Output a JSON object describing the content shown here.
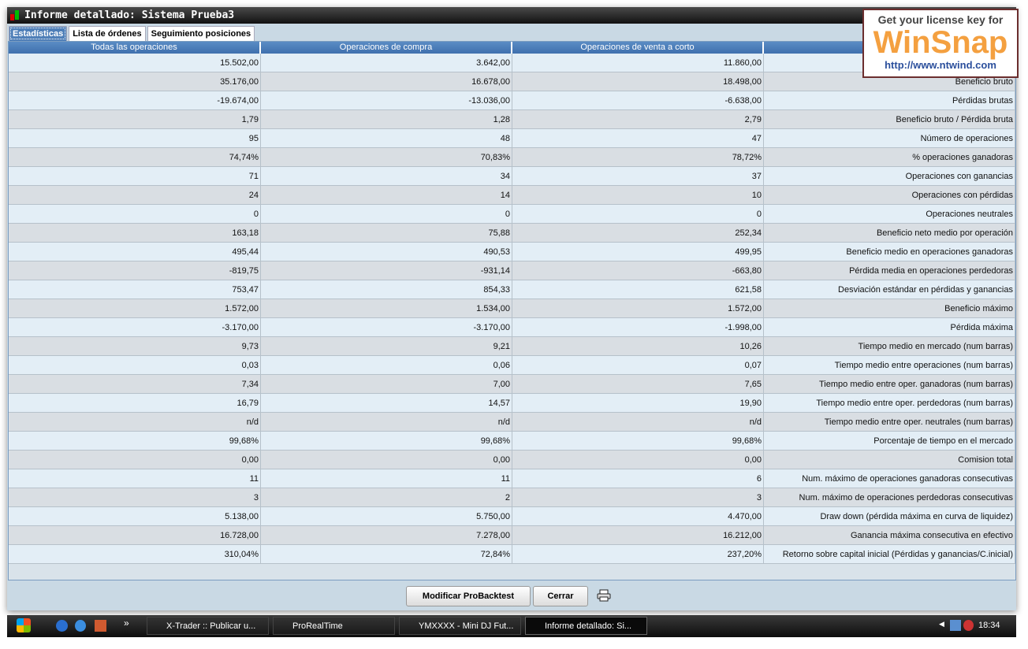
{
  "window": {
    "title": "Informe detallado: Sistema Prueba3"
  },
  "tabs": [
    {
      "label": "Estadísticas",
      "active": true
    },
    {
      "label": "Lista de órdenes",
      "active": false
    },
    {
      "label": "Seguimiento posiciones",
      "active": false
    }
  ],
  "table": {
    "headers": [
      "Todas las operaciones",
      "Operaciones de compra",
      "Operaciones de venta a corto"
    ],
    "rows": [
      [
        "15.502,00",
        "3.642,00",
        "11.860,00",
        ""
      ],
      [
        "35.176,00",
        "16.678,00",
        "18.498,00",
        "Beneficio bruto"
      ],
      [
        "-19.674,00",
        "-13.036,00",
        "-6.638,00",
        "Pérdidas brutas"
      ],
      [
        "1,79",
        "1,28",
        "2,79",
        "Beneficio bruto / Pérdida bruta"
      ],
      [
        "95",
        "48",
        "47",
        "Número de operaciones"
      ],
      [
        "74,74%",
        "70,83%",
        "78,72%",
        "% operaciones ganadoras"
      ],
      [
        "71",
        "34",
        "37",
        "Operaciones con ganancias"
      ],
      [
        "24",
        "14",
        "10",
        "Operaciones con pérdidas"
      ],
      [
        "0",
        "0",
        "0",
        "Operaciones neutrales"
      ],
      [
        "163,18",
        "75,88",
        "252,34",
        "Beneficio neto medio por operación"
      ],
      [
        "495,44",
        "490,53",
        "499,95",
        "Beneficio medio en operaciones ganadoras"
      ],
      [
        "-819,75",
        "-931,14",
        "-663,80",
        "Pérdida media en operaciones perdedoras"
      ],
      [
        "753,47",
        "854,33",
        "621,58",
        "Desviación estándar en pérdidas y ganancias"
      ],
      [
        "1.572,00",
        "1.534,00",
        "1.572,00",
        "Beneficio máximo"
      ],
      [
        "-3.170,00",
        "-3.170,00",
        "-1.998,00",
        "Pérdida máxima"
      ],
      [
        "9,73",
        "9,21",
        "10,26",
        "Tiempo medio en mercado (num barras)"
      ],
      [
        "0,03",
        "0,06",
        "0,07",
        "Tiempo medio entre operaciones (num barras)"
      ],
      [
        "7,34",
        "7,00",
        "7,65",
        "Tiempo medio entre oper. ganadoras (num barras)"
      ],
      [
        "16,79",
        "14,57",
        "19,90",
        "Tiempo medio entre oper. perdedoras (num barras)"
      ],
      [
        "n/d",
        "n/d",
        "n/d",
        "Tiempo medio entre oper. neutrales (num barras)"
      ],
      [
        "99,68%",
        "99,68%",
        "99,68%",
        "Porcentaje de tiempo en el mercado"
      ],
      [
        "0,00",
        "0,00",
        "0,00",
        "Comision total"
      ],
      [
        "11",
        "11",
        "6",
        "Num. máximo de operaciones ganadoras consecutivas"
      ],
      [
        "3",
        "2",
        "3",
        "Num. máximo de operaciones perdedoras consecutivas"
      ],
      [
        "5.138,00",
        "5.750,00",
        "4.470,00",
        "Draw down (pérdida máxima en curva de liquidez)"
      ],
      [
        "16.728,00",
        "7.278,00",
        "16.212,00",
        "Ganancia máxima consecutiva en efectivo"
      ],
      [
        "310,04%",
        "72,84%",
        "237,20%",
        "Retorno sobre capital inicial (Pérdidas y ganancias/C.inicial)"
      ]
    ]
  },
  "buttons": {
    "modify": "Modificar ProBacktest",
    "close": "Cerrar",
    "print_icon": "printer-icon"
  },
  "taskbar": {
    "items": [
      "X-Trader :: Publicar u...",
      "ProRealTime",
      "YMXXXX - Mini DJ Fut...",
      "Informe detallado: Si..."
    ],
    "clock": "18:34"
  },
  "overlay": {
    "line1": "Get your license key for",
    "brand": "WinSnap",
    "url": "http://www.ntwind.com"
  }
}
